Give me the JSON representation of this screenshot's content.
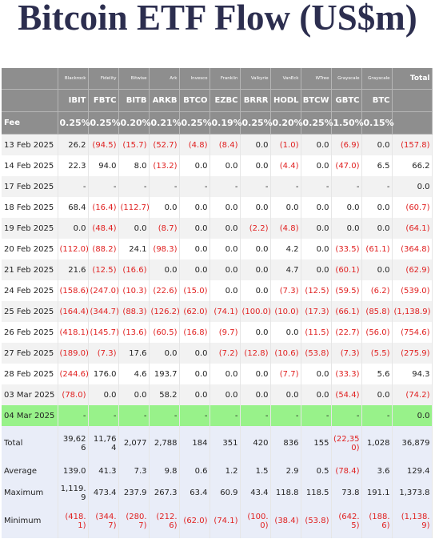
{
  "title": "Bitcoin ETF Flow (US$m)",
  "table": {
    "issuers": [
      "Blackrock",
      "Fidelity",
      "Bitwise",
      "Ark",
      "Invesco",
      "Franklin",
      "Valkyrie",
      "VanEck",
      "WTree",
      "Grayscale",
      "Grayscale",
      "Total"
    ],
    "tickers": [
      "IBIT",
      "FBTC",
      "BITB",
      "ARKB",
      "BTCO",
      "EZBC",
      "BRRR",
      "HODL",
      "BTCW",
      "GBTC",
      "BTC"
    ],
    "fee": {
      "label": "Fee",
      "values": [
        "0.25%",
        "0.25%",
        "0.20%",
        "0.21%",
        "0.25%",
        "0.19%",
        "0.25%",
        "0.20%",
        "0.25%",
        "1.50%",
        "0.15%"
      ]
    },
    "rows": [
      {
        "date": "13 Feb 2025",
        "values": [
          "26.2",
          "(94.5)",
          "(15.7)",
          "(52.7)",
          "(4.8)",
          "(8.4)",
          "0.0",
          "(1.0)",
          "0.0",
          "(6.9)",
          "0.0",
          "(157.8)"
        ]
      },
      {
        "date": "14 Feb 2025",
        "values": [
          "22.3",
          "94.0",
          "8.0",
          "(13.2)",
          "0.0",
          "0.0",
          "0.0",
          "(4.4)",
          "0.0",
          "(47.0)",
          "6.5",
          "66.2"
        ]
      },
      {
        "date": "17 Feb 2025",
        "values": [
          "-",
          "-",
          "-",
          "-",
          "-",
          "-",
          "-",
          "-",
          "-",
          "-",
          "-",
          "0.0"
        ]
      },
      {
        "date": "18 Feb 2025",
        "values": [
          "68.4",
          "(16.4)",
          "(112.7)",
          "0.0",
          "0.0",
          "0.0",
          "0.0",
          "0.0",
          "0.0",
          "0.0",
          "0.0",
          "(60.7)"
        ]
      },
      {
        "date": "19 Feb 2025",
        "values": [
          "0.0",
          "(48.4)",
          "0.0",
          "(8.7)",
          "0.0",
          "0.0",
          "(2.2)",
          "(4.8)",
          "0.0",
          "0.0",
          "0.0",
          "(64.1)"
        ]
      },
      {
        "date": "20 Feb 2025",
        "values": [
          "(112.0)",
          "(88.2)",
          "24.1",
          "(98.3)",
          "0.0",
          "0.0",
          "0.0",
          "4.2",
          "0.0",
          "(33.5)",
          "(61.1)",
          "(364.8)"
        ]
      },
      {
        "date": "21 Feb 2025",
        "values": [
          "21.6",
          "(12.5)",
          "(16.6)",
          "0.0",
          "0.0",
          "0.0",
          "0.0",
          "4.7",
          "0.0",
          "(60.1)",
          "0.0",
          "(62.9)"
        ]
      },
      {
        "date": "24 Feb 2025",
        "values": [
          "(158.6)",
          "(247.0)",
          "(10.3)",
          "(22.6)",
          "(15.0)",
          "0.0",
          "0.0",
          "(7.3)",
          "(12.5)",
          "(59.5)",
          "(6.2)",
          "(539.0)"
        ]
      },
      {
        "date": "25 Feb 2025",
        "values": [
          "(164.4)",
          "(344.7)",
          "(88.3)",
          "(126.2)",
          "(62.0)",
          "(74.1)",
          "(100.0)",
          "(10.0)",
          "(17.3)",
          "(66.1)",
          "(85.8)",
          "(1,138.9)"
        ]
      },
      {
        "date": "26 Feb 2025",
        "values": [
          "(418.1)",
          "(145.7)",
          "(13.6)",
          "(60.5)",
          "(16.8)",
          "(9.7)",
          "0.0",
          "0.0",
          "(11.5)",
          "(22.7)",
          "(56.0)",
          "(754.6)"
        ]
      },
      {
        "date": "27 Feb 2025",
        "values": [
          "(189.0)",
          "(7.3)",
          "17.6",
          "0.0",
          "0.0",
          "(7.2)",
          "(12.8)",
          "(10.6)",
          "(53.8)",
          "(7.3)",
          "(5.5)",
          "(275.9)"
        ]
      },
      {
        "date": "28 Feb 2025",
        "values": [
          "(244.6)",
          "176.0",
          "4.6",
          "193.7",
          "0.0",
          "0.0",
          "0.0",
          "(7.7)",
          "0.0",
          "(33.3)",
          "5.6",
          "94.3"
        ]
      },
      {
        "date": "03 Mar 2025",
        "values": [
          "(78.0)",
          "0.0",
          "0.0",
          "58.2",
          "0.0",
          "0.0",
          "0.0",
          "0.0",
          "0.0",
          "(54.4)",
          "0.0",
          "(74.2)"
        ]
      },
      {
        "date": "04 Mar 2025",
        "values": [
          "-",
          "-",
          "-",
          "-",
          "-",
          "-",
          "-",
          "-",
          "-",
          "-",
          "-",
          "0.0"
        ]
      }
    ],
    "summary": [
      {
        "label": "Total",
        "values": [
          "39,626",
          "11,764",
          "2,077",
          "2,788",
          "184",
          "351",
          "420",
          "836",
          "155",
          "(22,350)",
          "1,028",
          "36,879"
        ]
      },
      {
        "label": "Average",
        "values": [
          "139.0",
          "41.3",
          "7.3",
          "9.8",
          "0.6",
          "1.2",
          "1.5",
          "2.9",
          "0.5",
          "(78.4)",
          "3.6",
          "129.4"
        ]
      },
      {
        "label": "Maximum",
        "values": [
          "1,119.9",
          "473.4",
          "237.9",
          "267.3",
          "63.4",
          "60.9",
          "43.4",
          "118.8",
          "118.5",
          "73.8",
          "191.1",
          "1,373.8"
        ]
      },
      {
        "label": "Minimum",
        "values": [
          "(418.1)",
          "(344.7)",
          "(280.7)",
          "(212.6)",
          "(62.0)",
          "(74.1)",
          "(100.0)",
          "(38.4)",
          "(53.8)",
          "(642.5)",
          "(188.6)",
          "(1,138.9)"
        ]
      }
    ]
  }
}
